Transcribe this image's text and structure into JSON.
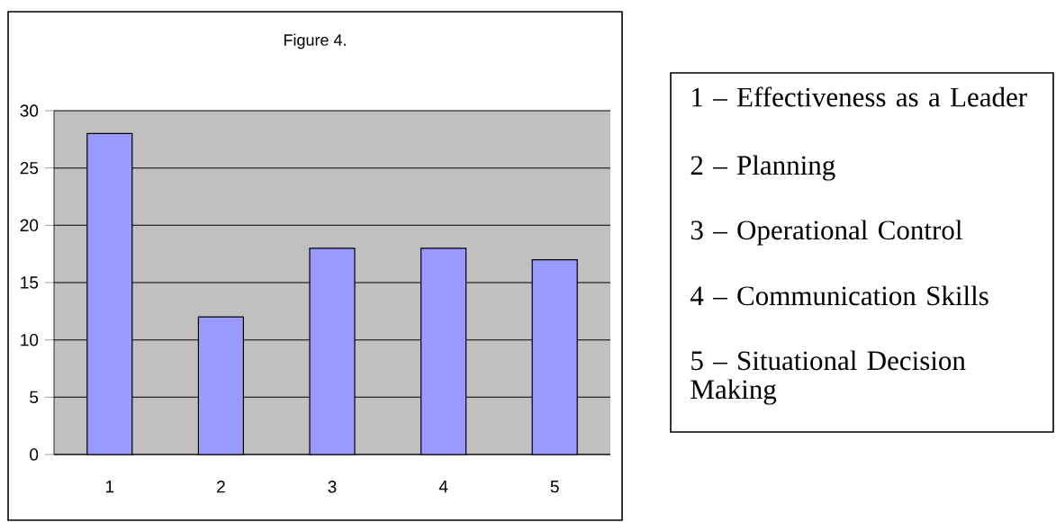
{
  "chart_data": {
    "type": "bar",
    "title": "Figure 4.",
    "categories": [
      "1",
      "2",
      "3",
      "4",
      "5"
    ],
    "values": [
      28,
      12,
      18,
      18,
      17
    ],
    "color": "#9999ff",
    "ylim": [
      0,
      30
    ],
    "yticks": [
      0,
      5,
      10,
      15,
      20,
      25,
      30
    ],
    "grid": "y",
    "annotations": [
      "1 – Effectiveness as a Leader",
      "2 – Planning",
      "3 – Operational Control",
      "4 – Communication Skills",
      "5 – Situational Decision Making"
    ]
  }
}
